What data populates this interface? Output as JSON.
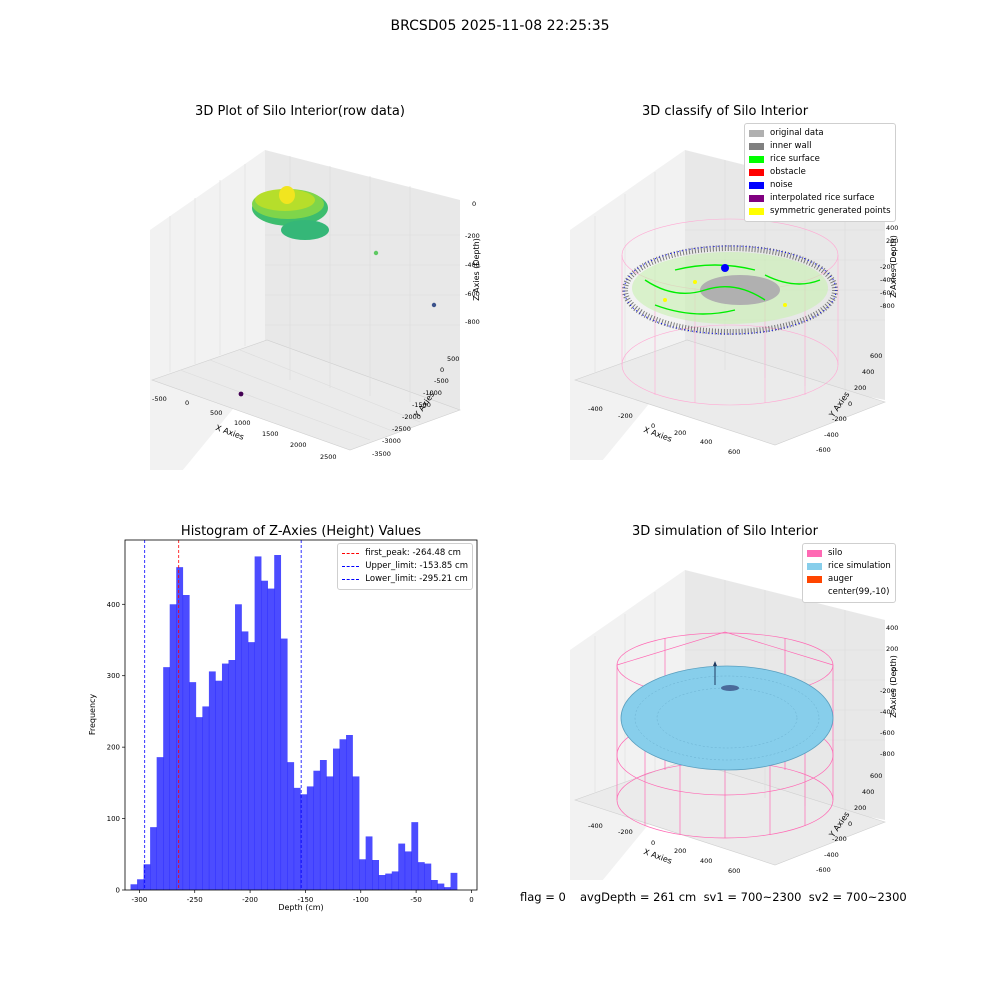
{
  "suptitle": "BRCSD05 2025-11-08 22:25:35",
  "footer": {
    "flag": "flag = 0",
    "avg": "avgDepth = 261 cm  sv1 = 700~2300  sv2 = 700~2300"
  },
  "panels": {
    "raw": {
      "title": "3D Plot of Silo Interior(row data)",
      "xlabel": "X Axies",
      "ylabel": "Y Axies",
      "zlabel": "Z Axies (Depth)",
      "xticks": [
        "-500",
        "0",
        "500",
        "1000",
        "1500",
        "2000",
        "2500"
      ],
      "yticks": [
        "500",
        "0",
        "-500",
        "-1000",
        "-1500",
        "-2000",
        "-2500",
        "-3000",
        "-3500"
      ],
      "zticks": [
        "0",
        "-200",
        "-400",
        "-600",
        "-800"
      ]
    },
    "classify": {
      "title": "3D classify of Silo Interior",
      "xlabel": "X Axies",
      "ylabel": "Y Axies",
      "zlabel": "Z Axies (Depth)",
      "xticks": [
        "-400",
        "-200",
        "0",
        "200",
        "400",
        "600"
      ],
      "yticks": [
        "600",
        "400",
        "200",
        "0",
        "-200",
        "-400",
        "-600"
      ],
      "zticks": [
        "400",
        "200",
        "0",
        "-200",
        "-400",
        "-600",
        "-800"
      ],
      "legend": [
        {
          "label": "original data",
          "color": "#b0b0b0"
        },
        {
          "label": "inner wall",
          "color": "#808080"
        },
        {
          "label": "rice surface",
          "color": "#00ff00"
        },
        {
          "label": "obstacle",
          "color": "#ff0000"
        },
        {
          "label": "noise",
          "color": "#0000ff"
        },
        {
          "label": "interpolated rice surface",
          "color": "#800080"
        },
        {
          "label": "symmetric generated points",
          "color": "#ffff00"
        }
      ]
    },
    "simulation": {
      "title": "3D simulation of Silo Interior",
      "xlabel": "X Axies",
      "ylabel": "Y Axies",
      "zlabel": "Z Axies (Depth)",
      "xticks": [
        "-400",
        "-200",
        "0",
        "200",
        "400",
        "600"
      ],
      "yticks": [
        "600",
        "400",
        "200",
        "0",
        "-200",
        "-400",
        "-600"
      ],
      "zticks": [
        "400",
        "200",
        "0",
        "-200",
        "-400",
        "-600",
        "-800"
      ],
      "legend": [
        {
          "label": "silo",
          "color": "#ff69b4"
        },
        {
          "label": "rice simulation",
          "color": "#87ceeb"
        },
        {
          "label": "auger",
          "color": "#ff4500"
        },
        {
          "label": "center(99,-10)",
          "color": "#ffffff"
        }
      ]
    }
  },
  "chart_data": {
    "type": "bar",
    "title": "Histogram of Z-Axies (Height) Values",
    "xlabel": "Depth (cm)",
    "ylabel": "Frequency",
    "xlim": [
      -313,
      5
    ],
    "ylim": [
      0,
      490
    ],
    "xticks": [
      -300,
      -250,
      -200,
      -150,
      -100,
      -50,
      0
    ],
    "yticks": [
      0,
      100,
      200,
      300,
      400
    ],
    "bin_start": -308,
    "bin_width": 5.9,
    "values": [
      8,
      15,
      36,
      88,
      186,
      312,
      400,
      452,
      413,
      291,
      242,
      257,
      306,
      293,
      317,
      322,
      400,
      362,
      347,
      467,
      433,
      422,
      469,
      352,
      179,
      143,
      134,
      145,
      167,
      182,
      159,
      198,
      211,
      217,
      159,
      43,
      75,
      42,
      21,
      23,
      26,
      65,
      54,
      95,
      39,
      37,
      14,
      9,
      4,
      24
    ],
    "color": "#0000ff",
    "vlines": [
      {
        "label": "first_peak: -264.48 cm",
        "x": -264.48,
        "color": "#ff0000"
      },
      {
        "label": "Upper_limit: -153.85 cm",
        "x": -153.85,
        "color": "#0000ff"
      },
      {
        "label": "Lower_limit: -295.21 cm",
        "x": -295.21,
        "color": "#0000ff"
      }
    ],
    "legend_position": "top-right"
  }
}
